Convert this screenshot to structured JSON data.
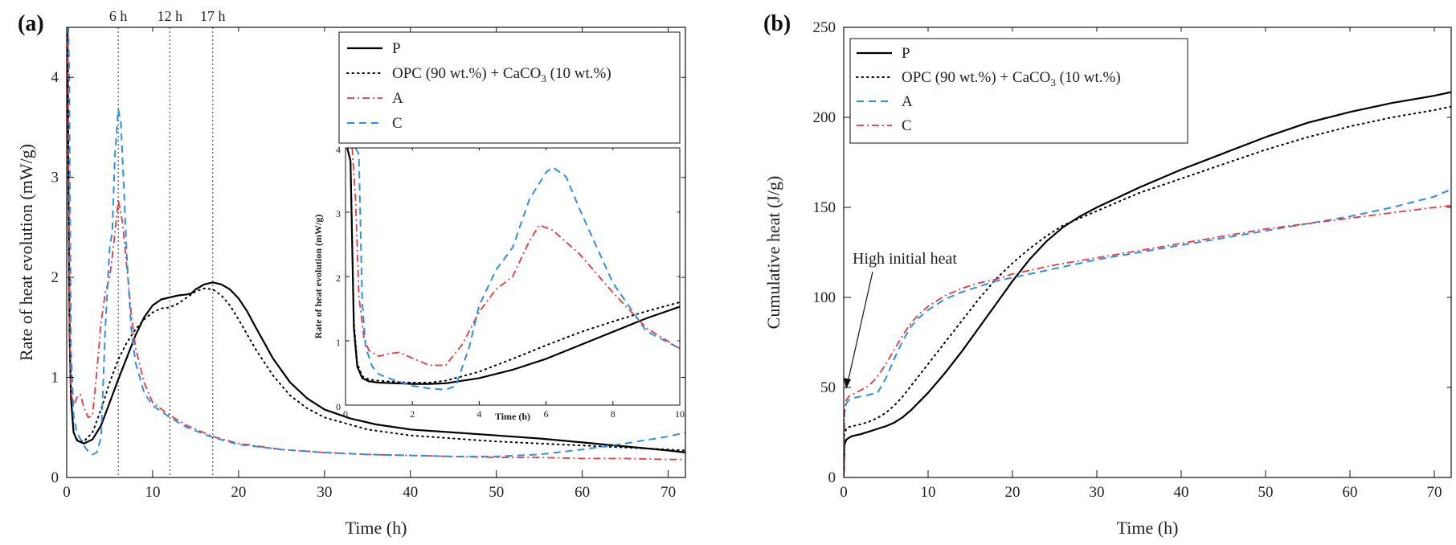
{
  "colors": {
    "P": "#000000",
    "OPC": "#000000",
    "red": "#e8383d",
    "blue": "#2f8fe8"
  },
  "chart_data": [
    {
      "type": "line",
      "panel_label": "(a)",
      "xlabel": "Time (h)",
      "ylabel": "Rate of heat evolution (mW/g)",
      "xlim": [
        0,
        72
      ],
      "ylim": [
        0,
        4.5
      ],
      "xticks": [
        0,
        10,
        20,
        30,
        40,
        50,
        60,
        70
      ],
      "yticks": [
        0,
        1,
        2,
        3,
        4
      ],
      "vlines": [
        {
          "x": 6,
          "label": "6 h"
        },
        {
          "x": 12,
          "label": "12 h"
        },
        {
          "x": 17,
          "label": "17 h"
        }
      ],
      "legend": [
        {
          "label": "P",
          "style": "solid",
          "color": "#000000"
        },
        {
          "label": "OPC (90 wt.%) + CaCO",
          "sub": "3",
          "label2": " (10 wt.%)",
          "style": "dotted",
          "color": "#000000"
        },
        {
          "label": "A",
          "style": "dashdot",
          "color": "#e8383d"
        },
        {
          "label": "C",
          "style": "dashed",
          "color": "#2f8fe8"
        }
      ],
      "series": [
        {
          "name": "P",
          "style": "solid",
          "color": "#000000",
          "x": [
            0,
            0.1,
            0.2,
            0.35,
            0.5,
            0.8,
            1.2,
            2,
            3,
            4,
            5,
            6,
            7,
            8,
            9,
            10,
            11,
            12,
            13,
            14,
            14.5,
            15,
            16,
            17,
            18,
            19,
            20,
            21,
            22,
            24,
            26,
            28,
            30,
            33,
            36,
            40,
            45,
            50,
            55,
            60,
            65,
            70,
            72
          ],
          "y": [
            4.5,
            4.5,
            3.0,
            1.4,
            0.8,
            0.45,
            0.37,
            0.34,
            0.38,
            0.52,
            0.75,
            0.98,
            1.2,
            1.42,
            1.6,
            1.72,
            1.78,
            1.8,
            1.82,
            1.83,
            1.84,
            1.88,
            1.93,
            1.95,
            1.93,
            1.88,
            1.79,
            1.66,
            1.5,
            1.19,
            0.95,
            0.79,
            0.68,
            0.59,
            0.53,
            0.48,
            0.45,
            0.42,
            0.39,
            0.35,
            0.31,
            0.27,
            0.25
          ]
        },
        {
          "name": "OPC (90 wt.%) + CaCO3 (10 wt.%)",
          "style": "dotted",
          "color": "#000000",
          "x": [
            0,
            0.1,
            0.2,
            0.35,
            0.5,
            0.8,
            1.2,
            2,
            3,
            4,
            5,
            6,
            7,
            8,
            9,
            10,
            11,
            12,
            13,
            14,
            15,
            16,
            17,
            18,
            19,
            20,
            22,
            24,
            26,
            28,
            30,
            35,
            40,
            45,
            50,
            55,
            60,
            65,
            70,
            72
          ],
          "y": [
            4.5,
            4.5,
            3.0,
            1.4,
            0.8,
            0.45,
            0.38,
            0.36,
            0.45,
            0.68,
            0.95,
            1.18,
            1.35,
            1.48,
            1.58,
            1.65,
            1.69,
            1.7,
            1.74,
            1.8,
            1.86,
            1.89,
            1.88,
            1.82,
            1.72,
            1.58,
            1.28,
            1.02,
            0.82,
            0.69,
            0.6,
            0.48,
            0.42,
            0.39,
            0.36,
            0.34,
            0.32,
            0.3,
            0.28,
            0.27
          ]
        },
        {
          "name": "A",
          "style": "dashdot",
          "color": "#e8383d",
          "x": [
            0,
            0.1,
            0.2,
            0.35,
            0.5,
            0.8,
            1.2,
            1.6,
            2.0,
            2.5,
            3,
            3.5,
            4,
            4.5,
            5,
            5.5,
            6,
            6.5,
            7,
            7.5,
            8,
            9,
            10,
            12,
            14,
            17,
            20,
            25,
            30,
            35,
            40,
            45,
            50,
            55,
            60,
            65,
            70,
            72
          ],
          "y": [
            4.5,
            4.5,
            3.5,
            1.5,
            0.85,
            0.72,
            0.8,
            0.83,
            0.7,
            0.6,
            0.62,
            1.05,
            1.55,
            1.85,
            2.0,
            2.35,
            2.78,
            2.55,
            2.1,
            1.65,
            1.3,
            0.95,
            0.75,
            0.62,
            0.52,
            0.41,
            0.34,
            0.28,
            0.25,
            0.23,
            0.22,
            0.21,
            0.2,
            0.2,
            0.19,
            0.19,
            0.18,
            0.18
          ]
        },
        {
          "name": "C",
          "style": "dashed",
          "color": "#2f8fe8",
          "x": [
            0,
            0.2,
            0.3,
            0.5,
            0.8,
            1.2,
            2,
            2.5,
            3,
            3.5,
            4,
            4.5,
            5,
            5.3,
            5.6,
            6,
            6.3,
            6.7,
            7,
            7.5,
            8,
            9,
            10,
            12,
            14,
            17,
            20,
            25,
            30,
            35,
            40,
            45,
            50,
            55,
            60,
            65,
            70,
            72
          ],
          "y": [
            4.5,
            4.5,
            4.0,
            1.3,
            0.62,
            0.45,
            0.32,
            0.26,
            0.23,
            0.25,
            0.4,
            1.5,
            2.3,
            2.45,
            3.2,
            3.68,
            3.55,
            2.8,
            2.2,
            1.5,
            1.15,
            0.85,
            0.72,
            0.6,
            0.5,
            0.4,
            0.33,
            0.28,
            0.25,
            0.23,
            0.22,
            0.21,
            0.21,
            0.23,
            0.28,
            0.34,
            0.41,
            0.45
          ]
        }
      ],
      "inset": {
        "xlabel": "Time (h)",
        "ylabel": "Rate of heat evolution (mW/g)",
        "xlim": [
          0,
          10
        ],
        "ylim": [
          0,
          4
        ],
        "xticks": [
          0,
          2,
          4,
          6,
          8,
          10
        ],
        "yticks": [
          0,
          1,
          2,
          3,
          4
        ],
        "series": [
          {
            "name": "P",
            "style": "solid",
            "color": "#000000",
            "x": [
              0.05,
              0.15,
              0.25,
              0.35,
              0.5,
              0.7,
              1.0,
              1.5,
              2.0,
              2.5,
              3,
              4,
              5,
              6,
              7,
              8,
              9,
              10
            ],
            "y": [
              4.0,
              3.8,
              1.2,
              0.6,
              0.42,
              0.37,
              0.35,
              0.34,
              0.33,
              0.33,
              0.34,
              0.42,
              0.55,
              0.72,
              0.93,
              1.14,
              1.35,
              1.53
            ]
          },
          {
            "name": "OPC (90 wt.%) + CaCO3 (10 wt.%)",
            "style": "dotted",
            "color": "#000000",
            "x": [
              0.05,
              0.15,
              0.25,
              0.35,
              0.5,
              0.7,
              1.0,
              1.5,
              2.0,
              2.5,
              3,
              4,
              5,
              6,
              7,
              8,
              9,
              10
            ],
            "y": [
              4.0,
              3.8,
              1.3,
              0.65,
              0.45,
              0.4,
              0.38,
              0.36,
              0.35,
              0.35,
              0.38,
              0.52,
              0.72,
              0.93,
              1.13,
              1.3,
              1.46,
              1.6
            ]
          },
          {
            "name": "A",
            "style": "dashdot",
            "color": "#e8383d",
            "x": [
              0.2,
              0.3,
              0.4,
              0.55,
              0.7,
              1.0,
              1.3,
              1.6,
              2.0,
              2.5,
              3.0,
              3.5,
              4.0,
              4.5,
              5.0,
              5.5,
              5.8,
              6.2,
              7.0,
              8.0,
              9.0,
              10.0
            ],
            "y": [
              4.0,
              3.2,
              1.7,
              1.05,
              0.85,
              0.76,
              0.8,
              0.82,
              0.73,
              0.62,
              0.62,
              0.95,
              1.45,
              1.8,
              2.0,
              2.55,
              2.8,
              2.72,
              2.35,
              1.75,
              1.2,
              0.88
            ]
          },
          {
            "name": "C",
            "style": "dashed",
            "color": "#2f8fe8",
            "x": [
              0.3,
              0.4,
              0.5,
              0.6,
              0.8,
              1.0,
              1.5,
              2.0,
              2.5,
              3.0,
              3.3,
              3.7,
              4.0,
              4.5,
              5.0,
              5.5,
              6.0,
              6.2,
              6.6,
              7.0,
              8.0,
              9.0,
              10.0
            ],
            "y": [
              4.0,
              3.9,
              1.6,
              0.9,
              0.6,
              0.48,
              0.38,
              0.3,
              0.26,
              0.24,
              0.3,
              0.9,
              1.55,
              2.1,
              2.45,
              3.2,
              3.62,
              3.7,
              3.55,
              3.05,
              1.9,
              1.15,
              0.88
            ]
          }
        ]
      }
    },
    {
      "type": "line",
      "panel_label": "(b)",
      "xlabel": "Time (h)",
      "ylabel": "Cumulative heat (J/g)",
      "xlim": [
        0,
        72
      ],
      "ylim": [
        0,
        250
      ],
      "xticks": [
        0,
        10,
        20,
        30,
        40,
        50,
        60,
        70
      ],
      "yticks": [
        0,
        50,
        100,
        150,
        200,
        250
      ],
      "annotation": "High initial heat",
      "legend": [
        {
          "label": "P",
          "style": "solid",
          "color": "#000000"
        },
        {
          "label": "OPC (90 wt.%) + CaCO",
          "sub": "3",
          "label2": " (10 wt.%)",
          "style": "dotted",
          "color": "#000000"
        },
        {
          "label": "A",
          "style": "dashed",
          "color": "#2f8fe8"
        },
        {
          "label": "C",
          "style": "dashdot",
          "color": "#e8383d"
        }
      ],
      "series": [
        {
          "name": "P",
          "style": "solid",
          "color": "#000000",
          "x": [
            0,
            0.1,
            0.3,
            0.6,
            1,
            2,
            3,
            4,
            5,
            6,
            7,
            8,
            10,
            12,
            14,
            16,
            18,
            20,
            22,
            24,
            26,
            28,
            30,
            35,
            40,
            45,
            50,
            55,
            60,
            65,
            70,
            72
          ],
          "y": [
            0,
            18,
            21,
            22,
            23,
            24,
            25.5,
            27,
            28.5,
            30.5,
            33.5,
            37.5,
            47,
            58,
            70,
            83,
            96,
            109,
            121,
            131,
            139,
            145,
            150,
            161,
            171,
            180,
            189,
            197,
            203,
            208,
            212,
            214
          ]
        },
        {
          "name": "OPC (90 wt.%) + CaCO3 (10 wt.%)",
          "style": "dotted",
          "color": "#000000",
          "x": [
            0,
            0.1,
            0.3,
            0.6,
            1,
            2,
            3,
            4,
            5,
            6,
            7,
            8,
            10,
            12,
            14,
            16,
            18,
            20,
            22,
            24,
            26,
            28,
            30,
            35,
            40,
            45,
            50,
            55,
            60,
            65,
            70,
            72
          ],
          "y": [
            0,
            24,
            27,
            28,
            28.5,
            29.5,
            31,
            33,
            36,
            40,
            45,
            51,
            63,
            75,
            87,
            99,
            110,
            119,
            127,
            134,
            140,
            144,
            148,
            158,
            166,
            174,
            182,
            189,
            195,
            200,
            204,
            206
          ]
        },
        {
          "name": "A",
          "style": "dashed",
          "color": "#2f8fe8",
          "x": [
            0,
            0.1,
            0.3,
            0.6,
            1,
            2,
            3,
            4,
            5,
            6,
            7,
            8,
            9,
            10,
            12,
            14,
            16,
            18,
            20,
            25,
            30,
            35,
            40,
            45,
            50,
            55,
            60,
            65,
            70,
            72
          ],
          "y": [
            0,
            36,
            41,
            43,
            44,
            45,
            46,
            47,
            55,
            66,
            76,
            84,
            89,
            93,
            99,
            103,
            106,
            109,
            111,
            116,
            121,
            125,
            129,
            133,
            137,
            141,
            145,
            150,
            156,
            160
          ]
        },
        {
          "name": "C",
          "style": "dashdot",
          "color": "#e8383d",
          "x": [
            0,
            0.1,
            0.3,
            0.6,
            1,
            2,
            3,
            4,
            5,
            6,
            7,
            8,
            9,
            10,
            12,
            14,
            16,
            18,
            20,
            25,
            30,
            35,
            40,
            45,
            50,
            55,
            60,
            65,
            70,
            72
          ],
          "y": [
            0,
            37,
            43,
            45,
            46,
            48.5,
            51,
            56,
            63,
            71,
            79,
            86,
            91,
            95,
            101,
            105,
            108,
            110,
            113,
            118,
            122,
            126,
            130,
            134,
            138,
            141,
            144,
            147,
            150,
            151
          ]
        }
      ]
    }
  ]
}
